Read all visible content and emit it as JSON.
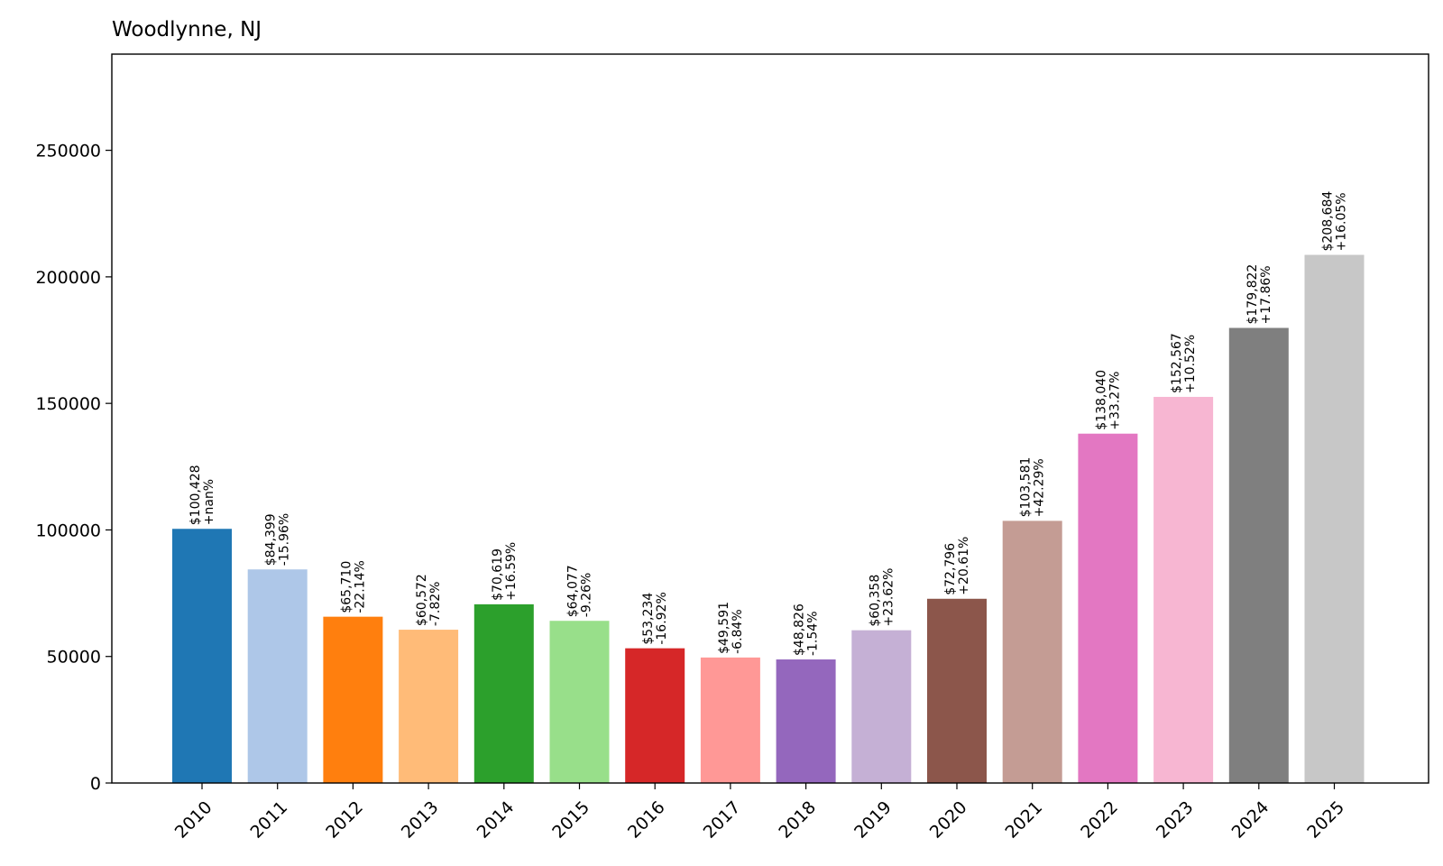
{
  "chart_data": {
    "type": "bar",
    "title": "Woodlynne, NJ",
    "xlabel": "",
    "ylabel": "",
    "ylim": [
      0,
      288000
    ],
    "yticks": [
      0,
      50000,
      100000,
      150000,
      200000,
      250000
    ],
    "ytick_labels": [
      "0",
      "50000",
      "100000",
      "150000",
      "200000",
      "250000"
    ],
    "categories": [
      "2010",
      "2011",
      "2012",
      "2013",
      "2014",
      "2015",
      "2016",
      "2017",
      "2018",
      "2019",
      "2020",
      "2021",
      "2022",
      "2023",
      "2024",
      "2025"
    ],
    "values": [
      100428,
      84399,
      65710,
      60572,
      70619,
      64077,
      53234,
      49591,
      48826,
      60358,
      72796,
      103581,
      138040,
      152567,
      179822,
      208684
    ],
    "value_labels": [
      "$100,428",
      "$84,399",
      "$65,710",
      "$60,572",
      "$70,619",
      "$64,077",
      "$53,234",
      "$49,591",
      "$48,826",
      "$60,358",
      "$72,796",
      "$103,581",
      "$138,040",
      "$152,567",
      "$179,822",
      "$208,684"
    ],
    "change_labels": [
      "+nan%",
      "-15.96%",
      "-22.14%",
      "-7.82%",
      "+16.59%",
      "-9.26%",
      "-16.92%",
      "-6.84%",
      "-1.54%",
      "+23.62%",
      "+20.61%",
      "+42.29%",
      "+33.27%",
      "+10.52%",
      "+17.86%",
      "+16.05%"
    ],
    "colors": [
      "#1f77b4",
      "#aec7e8",
      "#ff7f0e",
      "#ffbb78",
      "#2ca02c",
      "#98df8a",
      "#d62728",
      "#ff9896",
      "#9467bd",
      "#c5b0d5",
      "#8c564b",
      "#c49c94",
      "#e377c2",
      "#f7b6d2",
      "#7f7f7f",
      "#c7c7c7"
    ],
    "grid": false,
    "legend": "none"
  }
}
